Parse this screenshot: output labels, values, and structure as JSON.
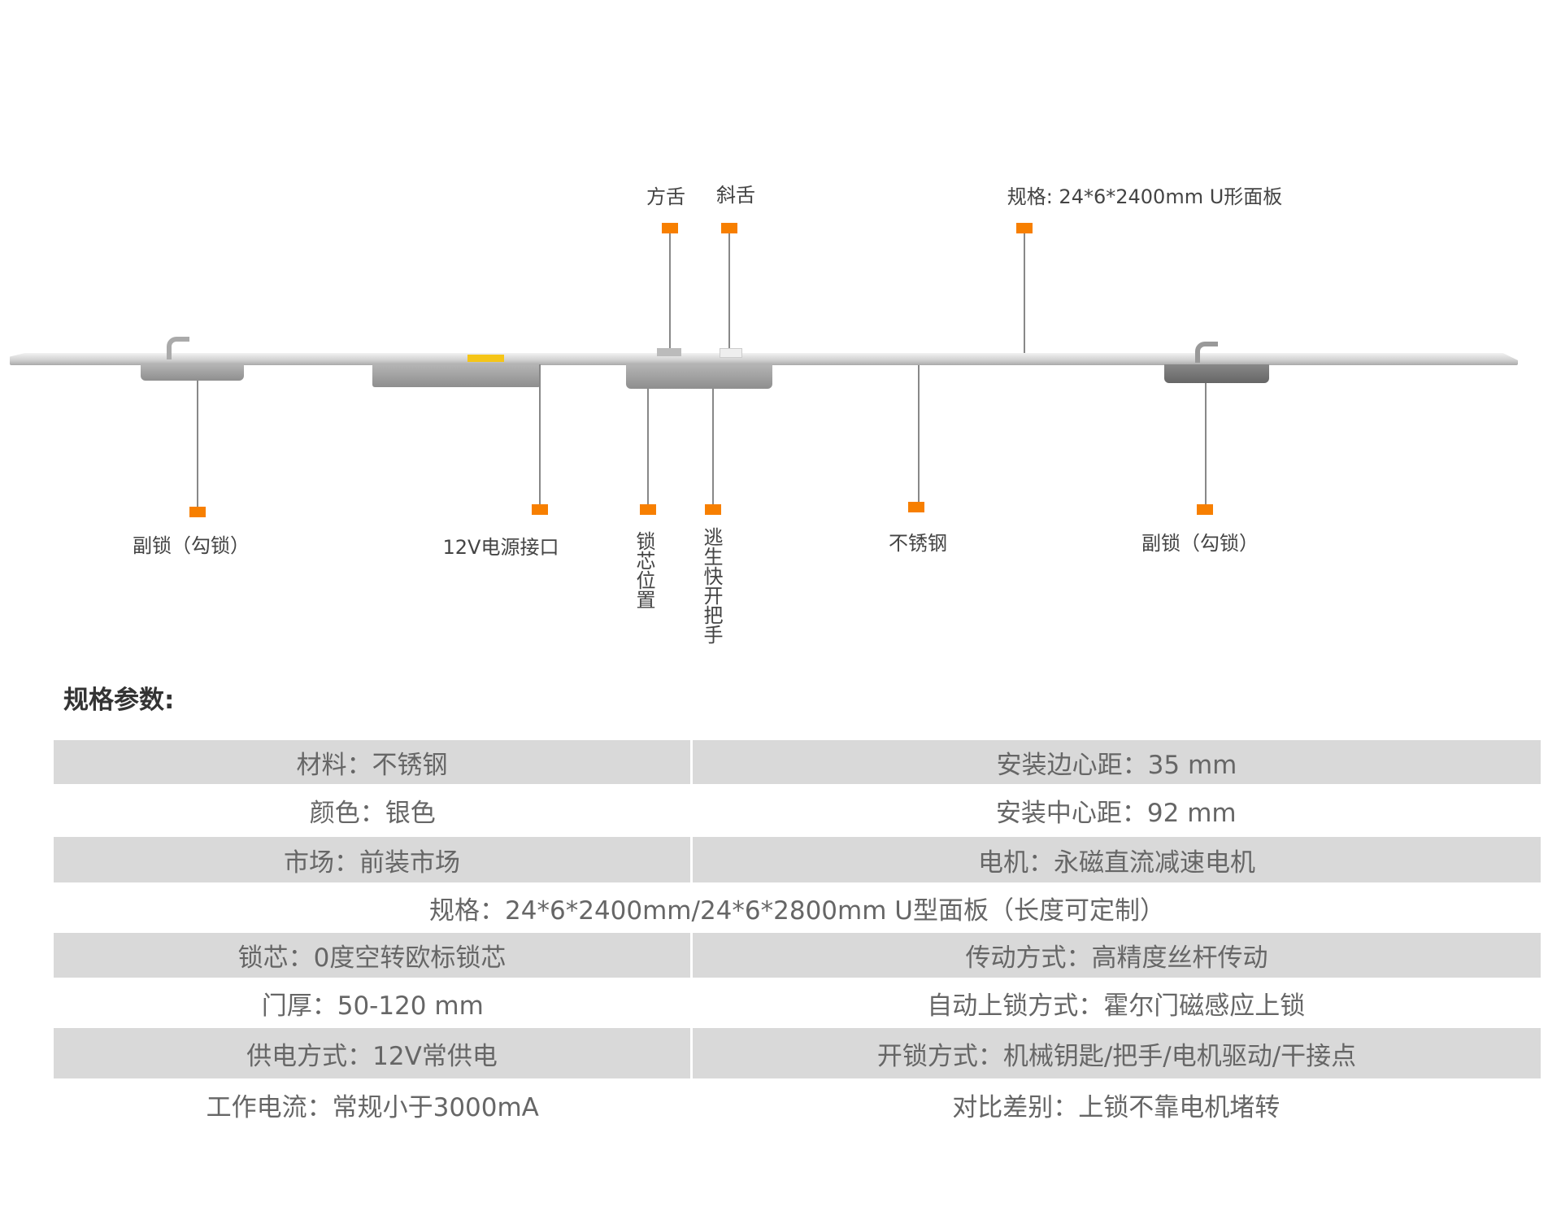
{
  "top_labels": {
    "square_bolt": "方舌",
    "latch_bolt": "斜舌",
    "spec": "规格: 24*6*2400mm  U形面板"
  },
  "bottom_labels": {
    "aux_lock_left": "副锁（勾锁）",
    "power_port": "12V电源接口",
    "core_position": "锁芯位置",
    "escape_handle": "逃生快开把手",
    "stainless": "不锈钢",
    "aux_lock_right": "副锁（勾锁）"
  },
  "colors": {
    "marker": "#f77f00",
    "row_shade": "#d9d9d9"
  },
  "section_title": "规格参数:",
  "rows": [
    [
      "材料：不锈钢",
      "安装边心距：35 mm"
    ],
    [
      "颜色：银色",
      "安装中心距：92 mm"
    ],
    [
      "市场：前装市场",
      "电机：永磁直流减速电机"
    ],
    [
      "规格：24*6*2400mm/24*6*2800mm U型面板（长度可定制）"
    ],
    [
      "锁芯：0度空转欧标锁芯",
      "传动方式：高精度丝杆传动"
    ],
    [
      "门厚：50-120 mm",
      "自动上锁方式：霍尔门磁感应上锁"
    ],
    [
      "供电方式：12V常供电",
      "开锁方式：机械钥匙/把手/电机驱动/干接点"
    ],
    [
      "工作电流：常规小于3000mA",
      "对比差别：上锁不靠电机堵转"
    ]
  ]
}
